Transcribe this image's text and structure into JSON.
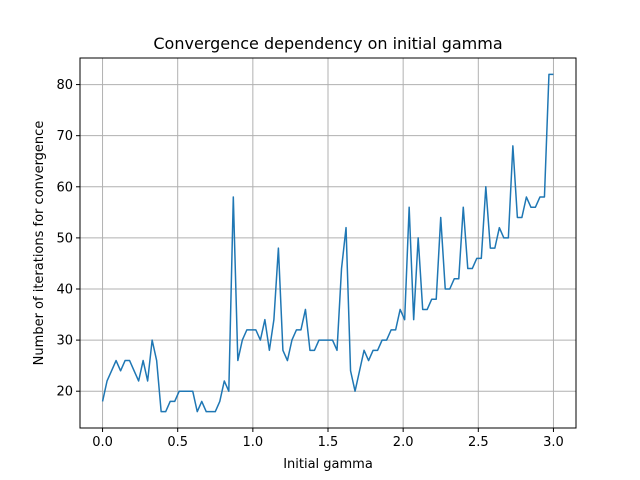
{
  "chart_data": {
    "type": "line",
    "title": "Convergence dependency on initial gamma",
    "xlabel": "Initial gamma",
    "ylabel": "Number of iterations for convergence",
    "xlim": [
      -0.15,
      3.15
    ],
    "ylim": [
      12.8,
      85.2
    ],
    "grid": true,
    "line_color": "#1f77b4",
    "grid_color": "#b0b0b0",
    "x_ticks": [
      0.0,
      0.5,
      1.0,
      1.5,
      2.0,
      2.5,
      3.0
    ],
    "x_tick_labels": [
      "0.0",
      "0.5",
      "1.0",
      "1.5",
      "2.0",
      "2.5",
      "3.0"
    ],
    "y_ticks": [
      20,
      30,
      40,
      50,
      60,
      70,
      80
    ],
    "y_tick_labels": [
      "20",
      "30",
      "40",
      "50",
      "60",
      "70",
      "80"
    ],
    "series": [
      {
        "x": [
          0.0,
          0.03,
          0.06,
          0.09,
          0.12,
          0.15,
          0.18,
          0.21,
          0.24,
          0.27,
          0.3,
          0.33,
          0.36,
          0.39,
          0.42,
          0.45,
          0.48,
          0.51,
          0.54,
          0.57,
          0.6,
          0.63,
          0.66,
          0.69,
          0.72,
          0.75,
          0.78,
          0.81,
          0.84,
          0.87,
          0.9,
          0.93,
          0.96,
          0.99,
          1.02,
          1.05,
          1.08,
          1.11,
          1.14,
          1.17,
          1.2,
          1.23,
          1.26,
          1.29,
          1.32,
          1.35,
          1.38,
          1.41,
          1.44,
          1.47,
          1.5,
          1.53,
          1.56,
          1.59,
          1.62,
          1.65,
          1.68,
          1.71,
          1.74,
          1.77,
          1.8,
          1.83,
          1.86,
          1.89,
          1.92,
          1.95,
          1.98,
          2.01,
          2.04,
          2.07,
          2.1,
          2.13,
          2.16,
          2.19,
          2.22,
          2.25,
          2.28,
          2.31,
          2.34,
          2.37,
          2.4,
          2.43,
          2.46,
          2.49,
          2.52,
          2.55,
          2.58,
          2.61,
          2.64,
          2.67,
          2.7,
          2.73,
          2.76,
          2.79,
          2.82,
          2.85,
          2.88,
          2.91,
          2.94,
          2.97,
          3.0
        ],
        "values": [
          18,
          22,
          24,
          26,
          24,
          26,
          26,
          24,
          22,
          26,
          22,
          30,
          26,
          16,
          16,
          18,
          18,
          20,
          20,
          20,
          20,
          16,
          18,
          16,
          16,
          16,
          18,
          22,
          20,
          58,
          26,
          30,
          32,
          32,
          32,
          30,
          34,
          28,
          34,
          48,
          28,
          26,
          30,
          32,
          32,
          36,
          28,
          28,
          30,
          30,
          30,
          30,
          28,
          44,
          52,
          24,
          20,
          24,
          28,
          26,
          28,
          28,
          30,
          30,
          32,
          32,
          36,
          34,
          56,
          34,
          50,
          36,
          36,
          38,
          38,
          54,
          40,
          40,
          42,
          42,
          56,
          44,
          44,
          46,
          46,
          60,
          48,
          48,
          52,
          50,
          50,
          68,
          54,
          54,
          58,
          56,
          56,
          58,
          58,
          82,
          82
        ]
      }
    ]
  }
}
